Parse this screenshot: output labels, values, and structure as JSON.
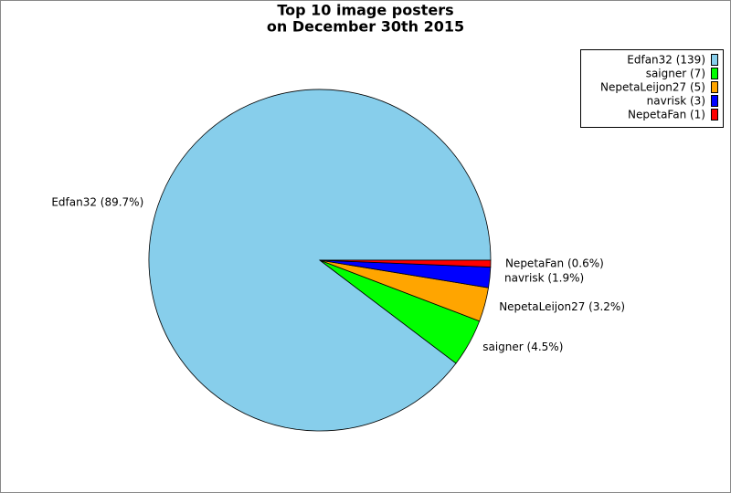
{
  "chart_data": {
    "type": "pie",
    "title": [
      "Top 10 image posters",
      "on December 30th 2015"
    ],
    "labels": [
      "Edfan32 (139)",
      "saigner (7)",
      "NepetaLeijon27 (5)",
      "navrisk (3)",
      "NepetaFan (1)"
    ],
    "values": [
      139,
      7,
      5,
      3,
      1
    ],
    "value_labels": [
      "Edfan32 (89.7%)",
      "saigner (4.5%)",
      "NepetaLeijon27 (3.2%)",
      "navrisk (1.9%)",
      "NepetaFan (0.6%)"
    ],
    "colors": [
      "#87ceeb",
      "#00ff00",
      "#ffa500",
      "#0000ff",
      "#ff0000"
    ],
    "legend": "upper right"
  }
}
